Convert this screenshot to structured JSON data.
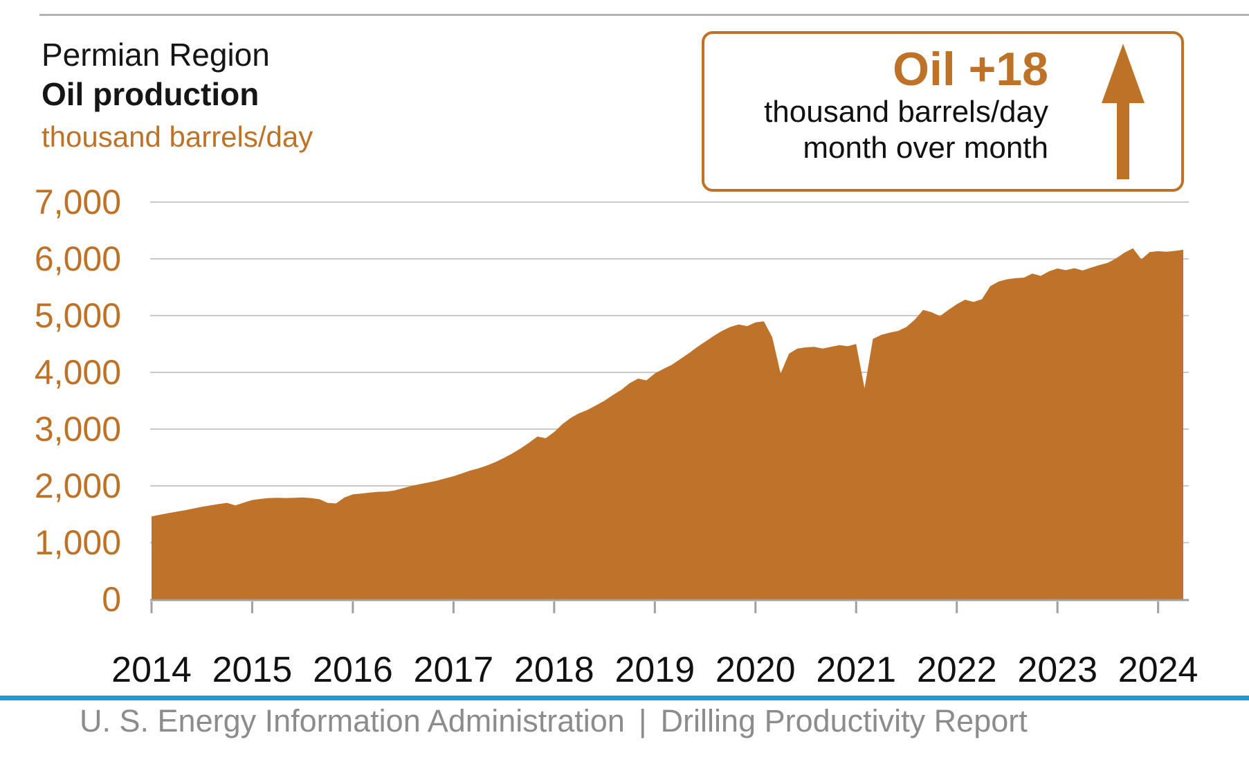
{
  "header": {
    "region": "Permian Region",
    "metric": "Oil production",
    "unit": "thousand barrels/day"
  },
  "callout": {
    "headline": "Oil +18",
    "line1": "thousand barrels/day",
    "line2": "month over month",
    "arrow_icon": "up-arrow-icon",
    "accent_color": "#be7227"
  },
  "chart_data": {
    "type": "area",
    "title": "Permian Region Oil production",
    "ylabel": "thousand barrels/day",
    "xlabel": "",
    "ylim": [
      0,
      7000
    ],
    "ytick_step": 1000,
    "ytick_labels": [
      "0",
      "1,000",
      "2,000",
      "3,000",
      "4,000",
      "5,000",
      "6,000",
      "7,000"
    ],
    "xtick_labels": [
      "2014",
      "2015",
      "2016",
      "2017",
      "2018",
      "2019",
      "2020",
      "2021",
      "2022",
      "2023",
      "2024"
    ],
    "grid": true,
    "legend": "none",
    "fill_color": "#bf732a",
    "gridline_color": "#c9c9c9",
    "axis_color": "#a0a0a0",
    "ytick_label_color": "#be7227",
    "xtick_label_color": "#111111",
    "series": [
      {
        "name": "Permian region oil production",
        "start_month": "2014-01",
        "end_month": "2024-04",
        "points_per_year": 12,
        "values": [
          1460,
          1490,
          1520,
          1545,
          1570,
          1600,
          1630,
          1655,
          1680,
          1700,
          1655,
          1705,
          1750,
          1770,
          1785,
          1790,
          1785,
          1790,
          1795,
          1785,
          1765,
          1700,
          1690,
          1795,
          1850,
          1865,
          1880,
          1895,
          1900,
          1920,
          1960,
          2000,
          2030,
          2060,
          2090,
          2130,
          2170,
          2220,
          2270,
          2310,
          2360,
          2420,
          2490,
          2570,
          2660,
          2760,
          2870,
          2840,
          2950,
          3090,
          3200,
          3280,
          3340,
          3420,
          3500,
          3600,
          3690,
          3810,
          3890,
          3860,
          3980,
          4060,
          4130,
          4230,
          4330,
          4440,
          4540,
          4640,
          4730,
          4800,
          4845,
          4815,
          4880,
          4900,
          4620,
          3980,
          4330,
          4420,
          4440,
          4450,
          4420,
          4450,
          4480,
          4460,
          4500,
          3720,
          4590,
          4660,
          4700,
          4730,
          4800,
          4930,
          5100,
          5060,
          4990,
          5100,
          5200,
          5280,
          5240,
          5290,
          5520,
          5600,
          5640,
          5660,
          5670,
          5740,
          5700,
          5780,
          5830,
          5800,
          5835,
          5795,
          5845,
          5890,
          5930,
          6010,
          6110,
          6185,
          5990,
          6120,
          6135,
          6125,
          6140,
          6160
        ]
      }
    ]
  },
  "footer": {
    "agency": "U. S. Energy Information Administration",
    "separator": "|",
    "report": "Drilling Productivity Report",
    "rule_color": "#1e9bd7"
  }
}
